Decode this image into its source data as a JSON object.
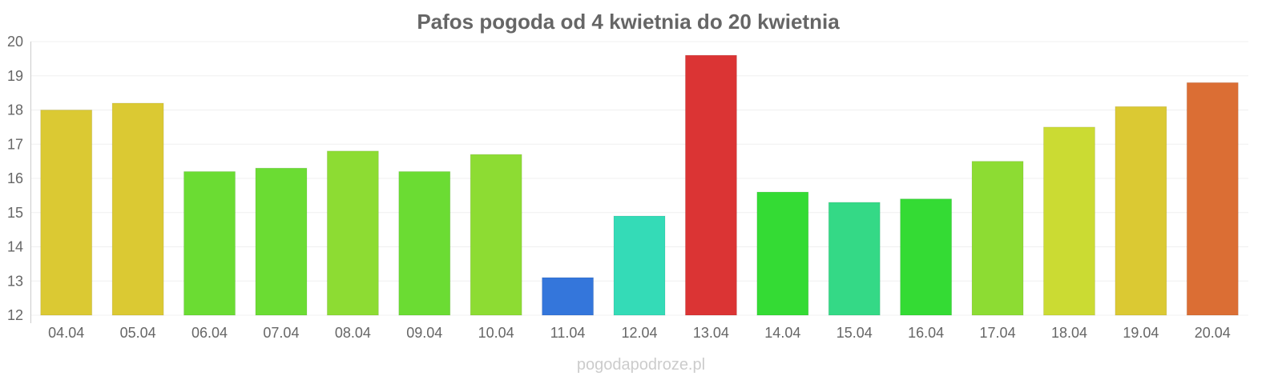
{
  "chart_data": {
    "type": "bar",
    "title": "Pafos pogoda od 4 kwietnia do 20 kwietnia",
    "xlabel": "",
    "ylabel": "",
    "ylim": [
      12,
      20
    ],
    "yticks": [
      "12",
      "13",
      "14",
      "15",
      "16",
      "17",
      "18",
      "19",
      "20"
    ],
    "grid": true,
    "categories": [
      "04.04",
      "05.04",
      "06.04",
      "07.04",
      "08.04",
      "09.04",
      "10.04",
      "11.04",
      "12.04",
      "13.04",
      "14.04",
      "15.04",
      "16.04",
      "17.04",
      "18.04",
      "19.04",
      "20.04"
    ],
    "values": [
      18.0,
      18.2,
      16.2,
      16.3,
      16.8,
      16.2,
      16.7,
      13.1,
      14.9,
      19.6,
      15.6,
      15.3,
      15.4,
      16.5,
      17.5,
      18.1,
      18.8
    ],
    "colors": [
      "#dbc933",
      "#dbc933",
      "#6bdc33",
      "#6bdc33",
      "#8ddc33",
      "#6bdc33",
      "#8ddc33",
      "#3476db",
      "#34dbb7",
      "#db3434",
      "#34db34",
      "#34d986",
      "#34db34",
      "#8ddc33",
      "#cbdb33",
      "#dbc933",
      "#db6e34"
    ]
  },
  "watermark": "pogodapodroze.pl"
}
